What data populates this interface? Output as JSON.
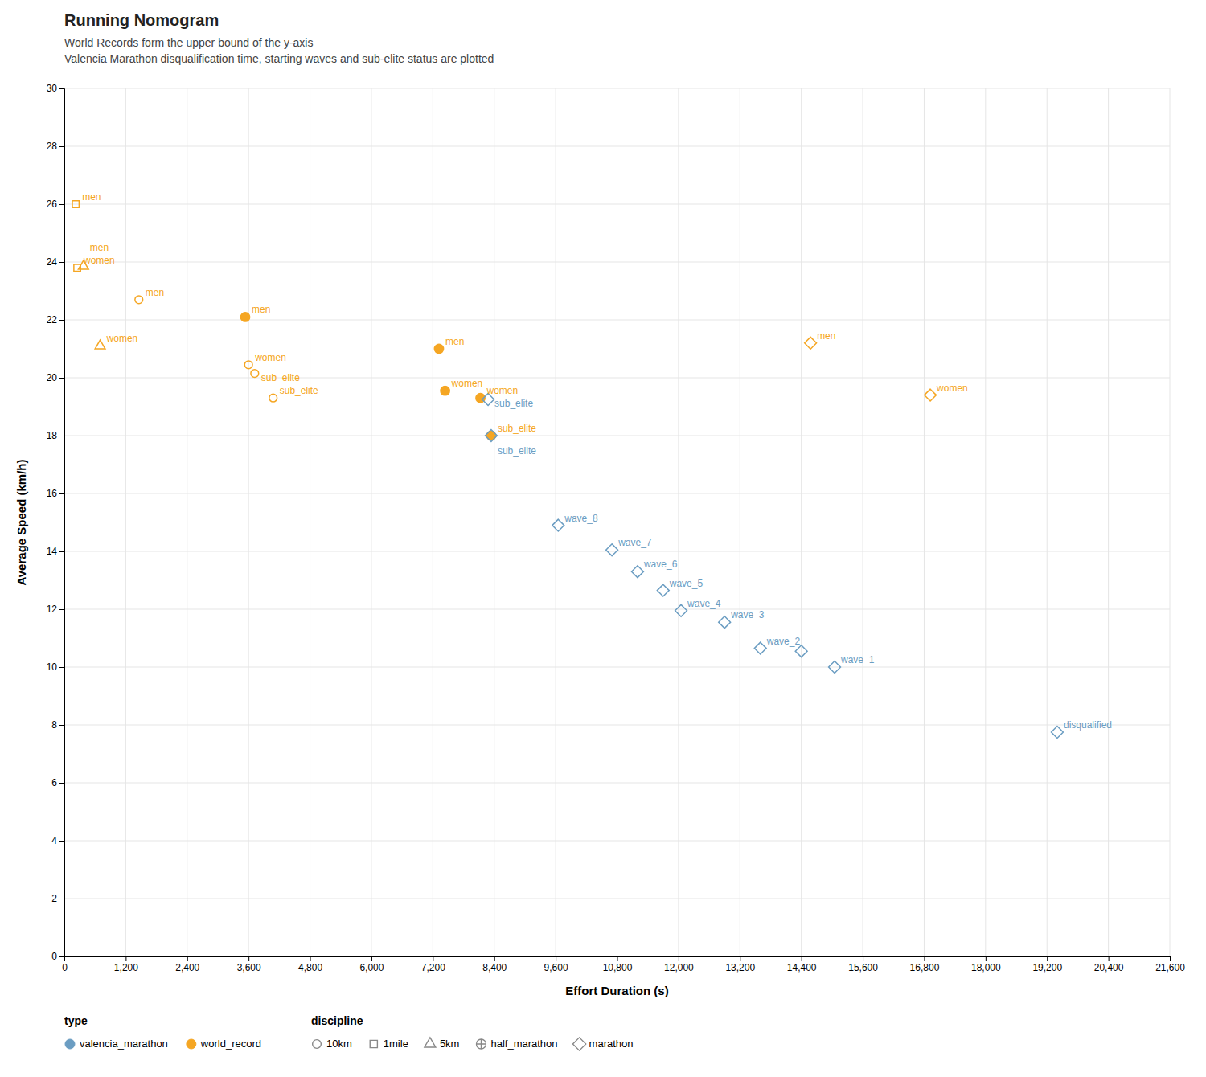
{
  "chart_data": {
    "type": "scatter",
    "title": "Running Nomogram",
    "subtitle": [
      "World Records form the upper bound of the y-axis",
      "Valencia Marathon disqualification time, starting waves and sub-elite status are plotted"
    ],
    "x_label": "Effort Duration (s)",
    "y_label": "Average Speed (km/h)",
    "xlim": [
      0,
      21600
    ],
    "ylim": [
      0,
      30
    ],
    "xticks": [
      0,
      {
        "value": 1200,
        "label": "1,200"
      },
      {
        "value": 2400,
        "label": "2,400"
      },
      {
        "value": 3600,
        "label": "3,600"
      },
      {
        "value": 4800,
        "label": "4,800"
      },
      {
        "value": 6000,
        "label": "6,000"
      },
      {
        "value": 7200,
        "label": "7,200"
      },
      {
        "value": 8400,
        "label": "8,400"
      },
      {
        "value": 9600,
        "label": "9,600"
      },
      {
        "value": 10800,
        "label": "10,800"
      },
      {
        "value": 12000,
        "label": "12,000"
      },
      {
        "value": 13200,
        "label": "13,200"
      },
      {
        "value": 14400,
        "label": "14,400"
      },
      {
        "value": 15600,
        "label": "15,600"
      },
      {
        "value": 16800,
        "label": "16,800"
      },
      {
        "value": 18000,
        "label": "18,000"
      },
      {
        "value": 19200,
        "label": "19,200"
      },
      {
        "value": 20400,
        "label": "20,400"
      },
      {
        "value": 21600,
        "label": "21,600"
      }
    ],
    "yticks": [
      0,
      2,
      4,
      6,
      8,
      10,
      12,
      14,
      16,
      18,
      20,
      22,
      24,
      26,
      28,
      30
    ],
    "grid": true,
    "series": [
      {
        "name": "world_record",
        "color": "#F5A623",
        "x": [
          223,
          252,
          374,
          1457,
          700,
          3535,
          3600,
          3720,
          4080,
          7320,
          7440,
          8130,
          8340,
          14580,
          16920
        ],
        "values": [
          26.0,
          23.8,
          23.85,
          22.7,
          21.1,
          22.1,
          20.45,
          20.15,
          19.3,
          21.0,
          19.55,
          19.3,
          18.0,
          21.2,
          19.4
        ],
        "discipline": [
          "1mile",
          "1mile",
          "5km",
          "10km",
          "5km",
          "half_marathon",
          "10km",
          "10km",
          "10km",
          "half_marathon",
          "half_marathon",
          "half_marathon",
          "half_marathon",
          "marathon",
          "marathon"
        ]
      },
      {
        "name": "valencia_marathon",
        "color": "#6B9DC2",
        "x": [
          8280,
          8340,
          9650,
          10700,
          11200,
          11700,
          12050,
          12900,
          13600,
          14400,
          15050,
          19400
        ],
        "values": [
          19.25,
          18.0,
          14.9,
          14.05,
          13.3,
          12.65,
          11.95,
          11.55,
          10.65,
          10.55,
          10.0,
          7.75
        ],
        "discipline": [
          "marathon",
          "marathon",
          "marathon",
          "marathon",
          "marathon",
          "marathon",
          "marathon",
          "marathon",
          "marathon",
          "marathon",
          "marathon",
          "marathon"
        ]
      }
    ],
    "legend_groups": [
      {
        "title": "type",
        "entries": [
          "valencia_marathon",
          "world_record"
        ]
      },
      {
        "title": "discipline",
        "entries": [
          "10km",
          "1mile",
          "5km",
          "half_marathon",
          "marathon"
        ]
      }
    ],
    "annotations": [
      {
        "text": "men",
        "x": 223,
        "y": 26.0,
        "color": "#F5A623"
      },
      {
        "text": "women",
        "x": 252,
        "y": 23.8,
        "color": "#F5A623"
      },
      {
        "text": "men",
        "x": 374,
        "y": 23.85,
        "color": "#F5A623"
      },
      {
        "text": "men",
        "x": 1457,
        "y": 22.7,
        "color": "#F5A623"
      },
      {
        "text": "women",
        "x": 700,
        "y": 21.1,
        "color": "#F5A623"
      },
      {
        "text": "men",
        "x": 3535,
        "y": 22.1,
        "color": "#F5A623"
      },
      {
        "text": "women",
        "x": 3600,
        "y": 20.45,
        "color": "#F5A623"
      },
      {
        "text": "sub_elite",
        "x": 3720,
        "y": 20.15,
        "color": "#F5A623"
      },
      {
        "text": "sub_elite",
        "x": 4080,
        "y": 19.3,
        "color": "#F5A623"
      },
      {
        "text": "men",
        "x": 7320,
        "y": 21.0,
        "color": "#F5A623"
      },
      {
        "text": "women",
        "x": 7440,
        "y": 19.55,
        "color": "#F5A623"
      },
      {
        "text": "women",
        "x": 8130,
        "y": 19.3,
        "color": "#F5A623"
      },
      {
        "text": "sub_elite",
        "x": 8340,
        "y": 18.0,
        "color": "#F5A623"
      },
      {
        "text": "men",
        "x": 14580,
        "y": 21.2,
        "color": "#F5A623"
      },
      {
        "text": "women",
        "x": 16920,
        "y": 19.4,
        "color": "#F5A623"
      },
      {
        "text": "wave_8",
        "x": 9650,
        "y": 14.9,
        "color": "#6B9DC2"
      },
      {
        "text": "wave_7",
        "x": 10700,
        "y": 14.05,
        "color": "#6B9DC2"
      },
      {
        "text": "wave_6",
        "x": 11200,
        "y": 13.3,
        "color": "#6B9DC2"
      },
      {
        "text": "wave_5",
        "x": 11700,
        "y": 12.65,
        "color": "#6B9DC2"
      },
      {
        "text": "wave_4",
        "x": 12050,
        "y": 11.95,
        "color": "#6B9DC2"
      },
      {
        "text": "wave_3",
        "x": 12900,
        "y": 11.55,
        "color": "#6B9DC2"
      },
      {
        "text": "wave_2",
        "x": 13600,
        "y": 10.65,
        "color": "#6B9DC2"
      },
      {
        "text": "wave_1",
        "x": 15050,
        "y": 10.0,
        "color": "#6B9DC2"
      },
      {
        "text": "disqualified",
        "x": 19400,
        "y": 7.75,
        "color": "#6B9DC2"
      },
      {
        "text": "sub_elite",
        "x": 8280,
        "y": 19.25,
        "color": "#6B9DC2"
      },
      {
        "text": "sub_elite",
        "x": 8340,
        "y": 18.0,
        "color": "#6B9DC2"
      }
    ]
  }
}
